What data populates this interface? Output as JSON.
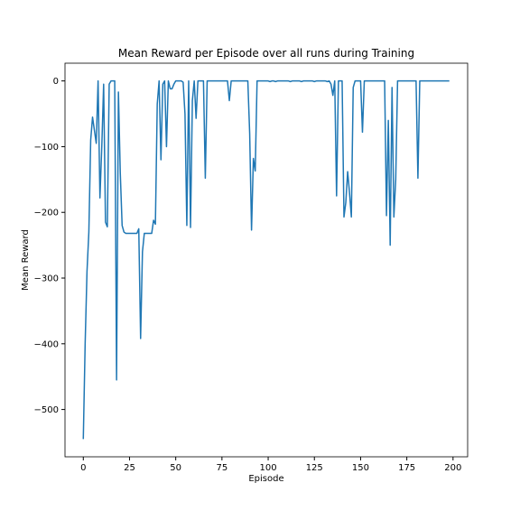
{
  "chart_data": {
    "type": "line",
    "title": "Mean Reward per Episode over all runs during Training",
    "xlabel": "Episode",
    "ylabel": "Mean Reward",
    "x": [
      0,
      1,
      2,
      3,
      4,
      5,
      6,
      7,
      8,
      9,
      10,
      11,
      12,
      13,
      14,
      15,
      16,
      17,
      18,
      19,
      20,
      21,
      22,
      23,
      24,
      25,
      26,
      27,
      28,
      29,
      30,
      31,
      32,
      33,
      34,
      35,
      36,
      37,
      38,
      39,
      40,
      41,
      42,
      43,
      44,
      45,
      46,
      47,
      48,
      49,
      50,
      51,
      52,
      53,
      54,
      55,
      56,
      57,
      58,
      59,
      60,
      61,
      62,
      63,
      64,
      65,
      66,
      67,
      68,
      69,
      70,
      71,
      72,
      73,
      74,
      75,
      76,
      77,
      78,
      79,
      80,
      81,
      82,
      83,
      84,
      85,
      86,
      87,
      88,
      89,
      90,
      91,
      92,
      93,
      94,
      95,
      96,
      97,
      98,
      99,
      100,
      101,
      102,
      103,
      104,
      105,
      106,
      107,
      108,
      109,
      110,
      111,
      112,
      113,
      114,
      115,
      116,
      117,
      118,
      119,
      120,
      121,
      122,
      123,
      124,
      125,
      126,
      127,
      128,
      129,
      130,
      131,
      132,
      133,
      134,
      135,
      136,
      137,
      138,
      139,
      140,
      141,
      142,
      143,
      144,
      145,
      146,
      147,
      148,
      149,
      150,
      151,
      152,
      153,
      154,
      155,
      156,
      157,
      158,
      159,
      160,
      161,
      162,
      163,
      164,
      165,
      166,
      167,
      168,
      169,
      170,
      171,
      172,
      173,
      174,
      175,
      176,
      177,
      178,
      179,
      180,
      181,
      182,
      183,
      184,
      185,
      186,
      187,
      188,
      189,
      190,
      191,
      192,
      193,
      194,
      195,
      196,
      197,
      198
    ],
    "series": [
      {
        "color": "#1f77b4",
        "values": [
          -545,
          -400,
          -290,
          -230,
          -90,
          -55,
          -75,
          -95,
          0,
          -178,
          -100,
          -5,
          -215,
          -222,
          -5,
          0,
          0,
          0,
          -455,
          -17,
          -140,
          -220,
          -230,
          -232,
          -232,
          -232,
          -232,
          -232,
          -232,
          -232,
          -225,
          -392,
          -260,
          -232,
          -232,
          -232,
          -232,
          -232,
          -212,
          -218,
          -35,
          0,
          -120,
          -5,
          0,
          -100,
          0,
          -12,
          -12,
          -5,
          0,
          0,
          0,
          0,
          -2,
          -50,
          -220,
          0,
          -223,
          -30,
          0,
          -57,
          0,
          0,
          0,
          0,
          -148,
          0,
          0,
          0,
          0,
          0,
          0,
          0,
          0,
          0,
          0,
          0,
          0,
          -30,
          0,
          0,
          0,
          0,
          0,
          0,
          0,
          0,
          0,
          0,
          -80,
          -227,
          -118,
          -137,
          0,
          0,
          0,
          0,
          0,
          0,
          0,
          -1,
          0,
          0,
          -1,
          0,
          0,
          0,
          0,
          0,
          0,
          0,
          -1,
          0,
          0,
          0,
          0,
          0,
          -1,
          0,
          0,
          0,
          0,
          0,
          0,
          -1,
          0,
          0,
          0,
          0,
          0,
          0,
          -1,
          0,
          -5,
          -22,
          0,
          -175,
          0,
          0,
          0,
          -207,
          -185,
          -138,
          -170,
          -207,
          -10,
          0,
          0,
          0,
          0,
          -78,
          0,
          0,
          0,
          0,
          0,
          0,
          0,
          0,
          0,
          0,
          0,
          0,
          -205,
          -60,
          -250,
          -10,
          -207,
          -150,
          0,
          0,
          0,
          0,
          0,
          0,
          0,
          0,
          0,
          0,
          0,
          -148,
          0,
          0,
          0,
          0,
          0,
          0,
          0,
          0,
          0,
          0,
          0,
          0,
          0,
          0,
          0,
          0,
          0
        ]
      }
    ],
    "xlim": [
      -9.9,
      207.9
    ],
    "ylim": [
      -572,
      27
    ],
    "xticks": [
      0,
      25,
      50,
      75,
      100,
      125,
      150,
      175,
      200
    ],
    "yticks": [
      {
        "value": -500,
        "label": "−500"
      },
      {
        "value": -400,
        "label": "−400"
      },
      {
        "value": -300,
        "label": "−300"
      },
      {
        "value": -200,
        "label": "−200"
      },
      {
        "value": -100,
        "label": "−100"
      },
      0
    ]
  }
}
